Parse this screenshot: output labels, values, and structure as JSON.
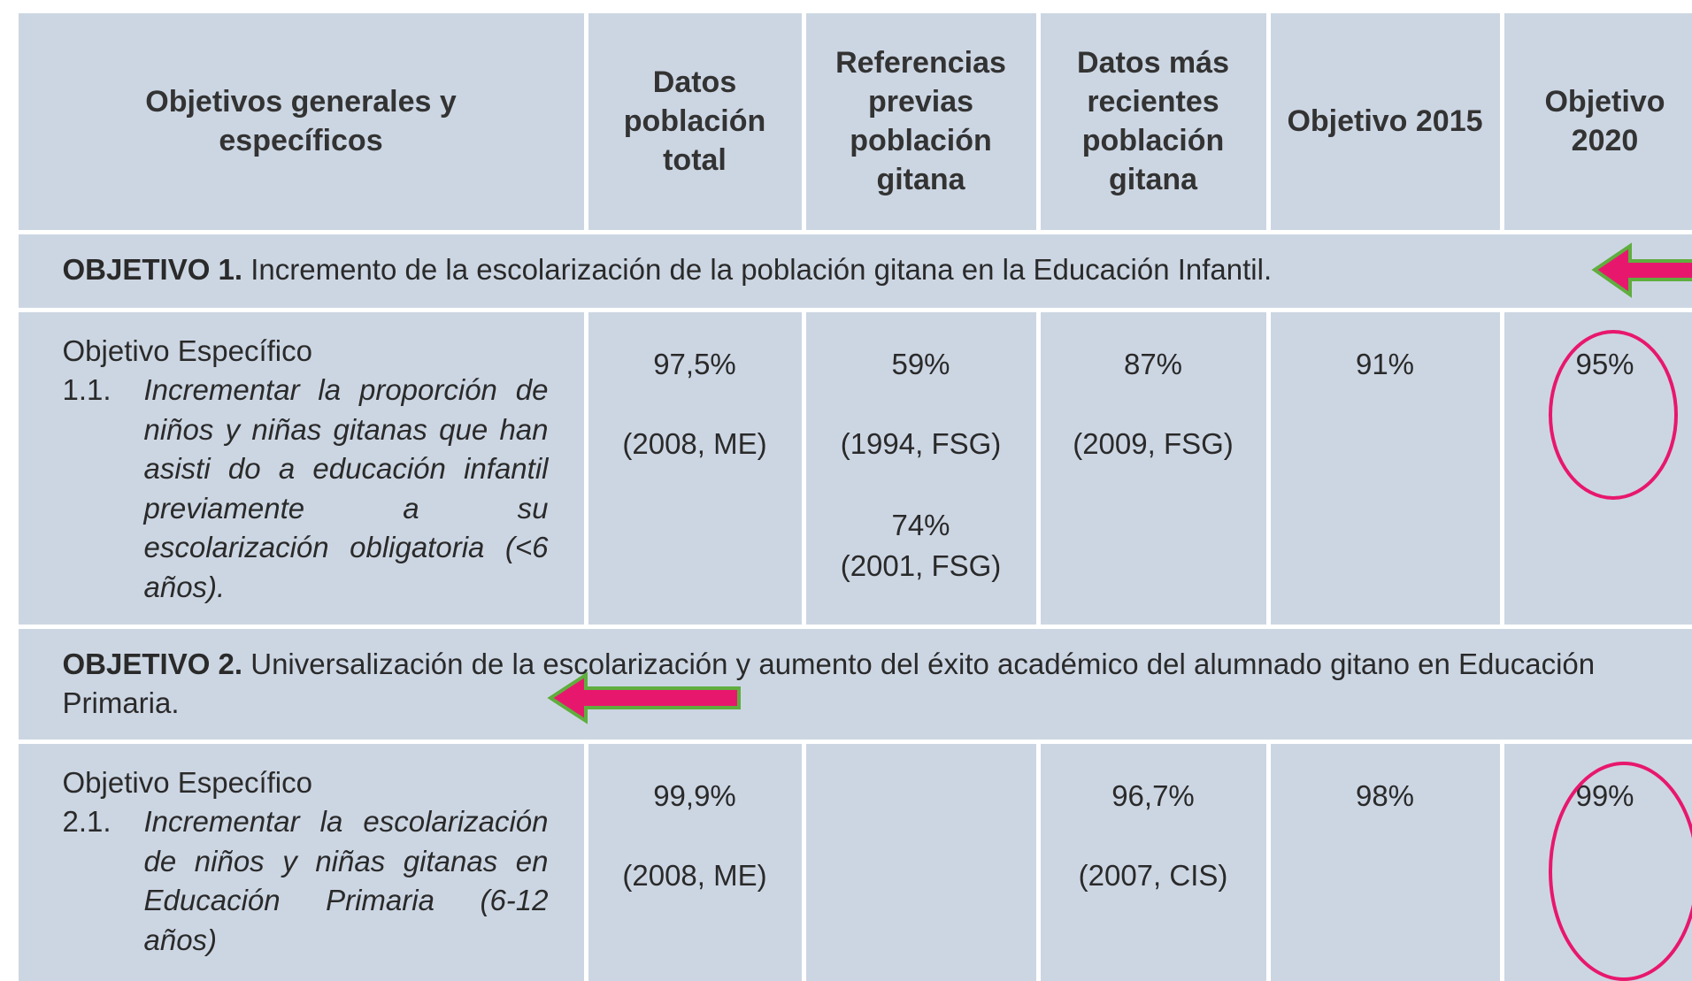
{
  "table": {
    "headers": [
      "Objetivos generales y específicos",
      "Datos población total",
      "Referencias previas población gitana",
      "Datos más recientes población gitana",
      "Objetivo 2015",
      "Objetivo 2020"
    ],
    "sections": [
      {
        "objective_label": "OBJETIVO 1.",
        "objective_text": "Incremento de la escolarización de la población gitana en la Educación Infantil.",
        "specific": {
          "label": "Objetivo Específico",
          "number": "1.1.",
          "text": "Incrementar la proporción de niños y niñas gitanas que han asisti do a educación infantil previamente a su escolarización obligatoria (<6 años).",
          "cells": [
            [
              "97,5%",
              "(2008, ME)"
            ],
            [
              "59%",
              "(1994, FSG)",
              "74%",
              "(2001, FSG)"
            ],
            [
              "87%",
              "(2009, FSG)"
            ],
            [
              "91%"
            ],
            [
              "95%"
            ]
          ]
        }
      },
      {
        "objective_label": "OBJETIVO 2.",
        "objective_text": "Universalización de la escolarización y aumento del éxito académico del alumnado gitano en Educación Primaria.",
        "specific": {
          "label": "Objetivo Específico",
          "number": "2.1.",
          "text": "Incrementar la escolarización de niños y niñas gitanas en Educación Primaria (6-12 años)",
          "cells": [
            [
              "99,9%",
              "(2008, ME)"
            ],
            [],
            [
              "96,7%",
              "(2007, CIS)"
            ],
            [
              "98%"
            ],
            [
              "99%"
            ]
          ]
        }
      }
    ]
  }
}
